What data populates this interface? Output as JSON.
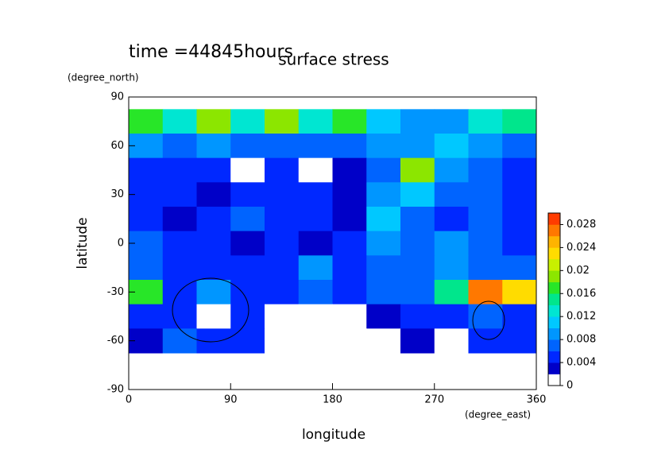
{
  "chart_data": {
    "type": "heatmap",
    "title": "surface stress",
    "annotation": "time =44845hours",
    "x_label": "longitude",
    "y_label": "latitude",
    "x_unit": "(degree_east)",
    "y_unit": "(degree_north)",
    "x": [
      15,
      45,
      75,
      105,
      135,
      165,
      195,
      225,
      255,
      285,
      315,
      345
    ],
    "y": [
      75,
      60,
      45,
      30,
      15,
      0,
      -15,
      -30,
      -45,
      -60
    ],
    "z": [
      [
        0.016,
        0.012,
        0.018,
        0.012,
        0.018,
        0.012,
        0.016,
        0.01,
        0.008,
        0.008,
        0.012,
        0.014
      ],
      [
        0.008,
        0.006,
        0.008,
        0.006,
        0.006,
        0.006,
        0.006,
        0.008,
        0.008,
        0.01,
        0.008,
        0.006
      ],
      [
        0.004,
        0.004,
        0.004,
        0,
        0.004,
        0,
        0.002,
        0.006,
        0.018,
        0.008,
        0.006,
        0.004
      ],
      [
        0.004,
        0.004,
        0.002,
        0.004,
        0.004,
        0.004,
        0.002,
        0.008,
        0.01,
        0.006,
        0.006,
        0.004
      ],
      [
        0.004,
        0.002,
        0.004,
        0.006,
        0.004,
        0.004,
        0.002,
        0.01,
        0.006,
        0.004,
        0.006,
        0.004
      ],
      [
        0.006,
        0.004,
        0.004,
        0.002,
        0.004,
        0.002,
        0.004,
        0.008,
        0.006,
        0.008,
        0.006,
        0.004
      ],
      [
        0.006,
        0.004,
        0.004,
        0.004,
        0.004,
        0.008,
        0.004,
        0.006,
        0.006,
        0.008,
        0.006,
        0.006
      ],
      [
        0.016,
        0.004,
        0.008,
        0.004,
        0.004,
        0.006,
        0.004,
        0.006,
        0.006,
        0.014,
        0.026,
        0.022
      ],
      [
        0.004,
        0.004,
        0,
        0.004,
        0,
        0,
        0,
        0.002,
        0.004,
        0.004,
        0.006,
        0.004
      ],
      [
        0.002,
        0.006,
        0.004,
        0.004,
        0,
        0,
        0,
        0,
        0.002,
        0,
        0.004,
        0.004
      ]
    ],
    "xlim": [
      0,
      360
    ],
    "xticks": [
      0,
      90,
      180,
      270,
      360
    ],
    "ylim": [
      -90,
      90
    ],
    "yticks": [
      -90,
      -60,
      -30,
      0,
      30,
      60,
      90
    ],
    "zlim": [
      0,
      0.03
    ],
    "zticks": [
      0,
      0.004,
      0.008,
      0.012,
      0.016,
      0.02,
      0.024,
      0.028
    ],
    "colormap": [
      "#ffffff",
      "#0000c8",
      "#0028ff",
      "#0064ff",
      "#0096ff",
      "#00c8ff",
      "#00e6d2",
      "#00e68c",
      "#28e628",
      "#8ce600",
      "#c8f000",
      "#ffdc00",
      "#ffb400",
      "#ff7800",
      "#ff3c00"
    ]
  }
}
